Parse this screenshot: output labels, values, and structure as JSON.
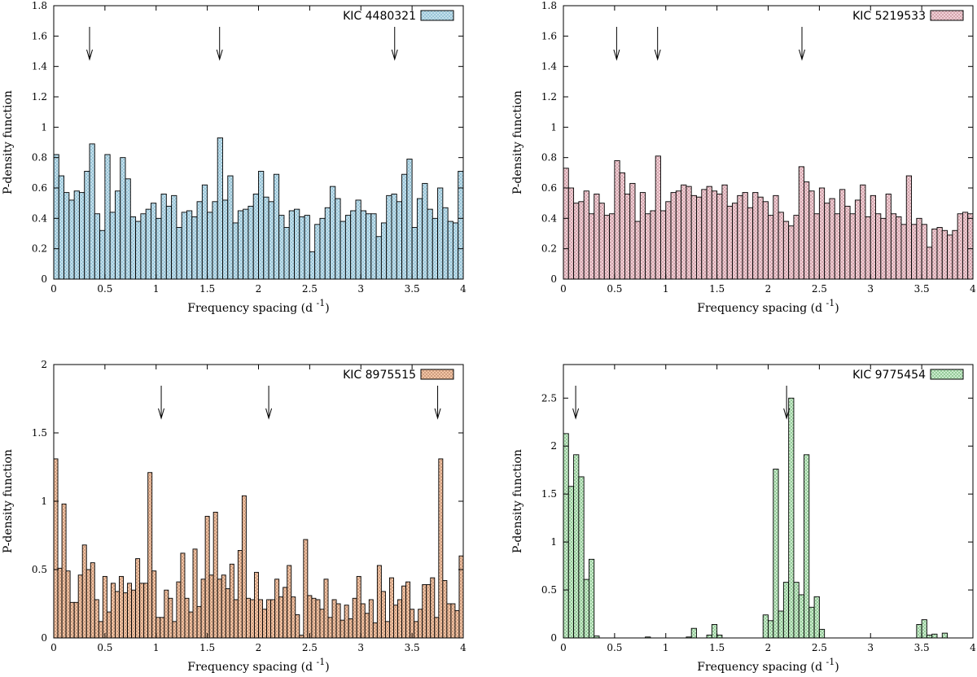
{
  "figure": {
    "caption": ""
  },
  "chart_data": [
    {
      "type": "bar",
      "name": "KIC 4480321",
      "legend": "KIC 4480321",
      "legend_position": "top-right",
      "color": "#c9e3ee",
      "pattern_color": "#7fb5cc",
      "xlabel": "Frequency spacing (d",
      "xlabel_sup": "-1",
      "xlabel_tail": ")",
      "ylabel": "P-density function",
      "xlim": [
        0,
        4
      ],
      "ylim": [
        0,
        1.8
      ],
      "xticks": [
        0,
        0.5,
        1,
        1.5,
        2,
        2.5,
        3,
        3.5,
        4
      ],
      "xtick_labels": [
        "0",
        "0.5",
        "1",
        "1.5",
        "2",
        "2.5",
        "3",
        "3.5",
        "4"
      ],
      "yticks": [
        0,
        0.2,
        0.4,
        0.6,
        0.8,
        1,
        1.2,
        1.4,
        1.6,
        1.8
      ],
      "ytick_labels": [
        "0",
        "0.2",
        "0.4",
        "0.6",
        "0.8",
        "1",
        "1.2",
        "1.4",
        "1.6",
        "1.8"
      ],
      "bin_width": 0.05,
      "arrows": [
        0.35,
        1.62,
        3.33
      ],
      "values": [
        0.82,
        0.68,
        0.57,
        0.52,
        0.58,
        0.57,
        0.71,
        0.89,
        0.43,
        0.32,
        0.82,
        0.44,
        0.58,
        0.8,
        0.66,
        0.41,
        0.38,
        0.43,
        0.46,
        0.5,
        0.4,
        0.56,
        0.48,
        0.55,
        0.34,
        0.44,
        0.45,
        0.41,
        0.51,
        0.62,
        0.44,
        0.51,
        0.93,
        0.52,
        0.68,
        0.37,
        0.45,
        0.46,
        0.48,
        0.56,
        0.71,
        0.54,
        0.51,
        0.69,
        0.42,
        0.34,
        0.45,
        0.46,
        0.41,
        0.42,
        0.18,
        0.36,
        0.4,
        0.47,
        0.61,
        0.53,
        0.38,
        0.42,
        0.45,
        0.52,
        0.45,
        0.43,
        0.43,
        0.28,
        0.37,
        0.55,
        0.56,
        0.51,
        0.69,
        0.79,
        0.34,
        0.53,
        0.63,
        0.46,
        0.4,
        0.6,
        0.47,
        0.38,
        0.37,
        0.71,
        0.52,
        0.37,
        0.64
      ]
    },
    {
      "type": "bar",
      "name": "KIC 5219533",
      "legend": "KIC 5219533",
      "legend_position": "top-right",
      "color": "#f3d6db",
      "pattern_color": "#c48a95",
      "xlabel": "Frequency spacing (d",
      "xlabel_sup": "-1",
      "xlabel_tail": ")",
      "ylabel": "P-density function",
      "xlim": [
        0,
        4
      ],
      "ylim": [
        0,
        1.8
      ],
      "xticks": [
        0,
        0.5,
        1,
        1.5,
        2,
        2.5,
        3,
        3.5,
        4
      ],
      "xtick_labels": [
        "0",
        "0.5",
        "1",
        "1.5",
        "2",
        "2.5",
        "3",
        "3.5",
        "4"
      ],
      "yticks": [
        0,
        0.2,
        0.4,
        0.6,
        0.8,
        1,
        1.2,
        1.4,
        1.6,
        1.8
      ],
      "ytick_labels": [
        "0",
        "0.2",
        "0.4",
        "0.6",
        "0.8",
        "1",
        "1.2",
        "1.4",
        "1.6",
        "1.8"
      ],
      "bin_width": 0.05,
      "arrows": [
        0.52,
        0.92,
        2.33
      ],
      "values": [
        0.73,
        0.6,
        0.5,
        0.51,
        0.58,
        0.43,
        0.56,
        0.5,
        0.42,
        0.43,
        0.78,
        0.7,
        0.56,
        0.63,
        0.38,
        0.57,
        0.43,
        0.45,
        0.81,
        0.45,
        0.51,
        0.57,
        0.58,
        0.62,
        0.61,
        0.55,
        0.54,
        0.59,
        0.61,
        0.58,
        0.56,
        0.62,
        0.48,
        0.5,
        0.55,
        0.57,
        0.47,
        0.57,
        0.54,
        0.51,
        0.42,
        0.55,
        0.44,
        0.38,
        0.35,
        0.42,
        0.74,
        0.64,
        0.58,
        0.43,
        0.6,
        0.5,
        0.53,
        0.43,
        0.59,
        0.48,
        0.43,
        0.52,
        0.62,
        0.41,
        0.55,
        0.43,
        0.4,
        0.56,
        0.43,
        0.41,
        0.36,
        0.68,
        0.36,
        0.4,
        0.36,
        0.21,
        0.33,
        0.34,
        0.32,
        0.29,
        0.32,
        0.43,
        0.44,
        0.43,
        0.38,
        0.39,
        0.47,
        0.38,
        0.42,
        0.38,
        0.36
      ]
    },
    {
      "type": "bar",
      "name": "KIC 8975515",
      "legend": "KIC 8975515",
      "legend_position": "top-right",
      "color": "#f7c9a9",
      "pattern_color": "#b7866a",
      "xlabel": "Frequency spacing (d",
      "xlabel_sup": "-1",
      "xlabel_tail": ")",
      "ylabel": "P-density function",
      "xlim": [
        0,
        4
      ],
      "ylim": [
        0,
        2
      ],
      "xticks": [
        0,
        0.5,
        1,
        1.5,
        2,
        2.5,
        3,
        3.5,
        4
      ],
      "xtick_labels": [
        "0",
        "0.5",
        "1",
        "1.5",
        "2",
        "2.5",
        "3",
        "3.5",
        "4"
      ],
      "yticks": [
        0,
        0.5,
        1,
        1.5,
        2
      ],
      "ytick_labels": [
        "0",
        "0.5",
        "1",
        "1.5",
        "2"
      ],
      "bin_width": 0.04,
      "arrows": [
        1.05,
        2.1,
        3.75
      ],
      "values": [
        1.31,
        0.51,
        0.98,
        0.49,
        0.26,
        0.26,
        0.46,
        0.68,
        0.5,
        0.55,
        0.28,
        0.12,
        0.45,
        0.19,
        0.4,
        0.34,
        0.45,
        0.33,
        0.4,
        0.35,
        0.58,
        0.4,
        0.4,
        1.21,
        0.49,
        0.15,
        0.15,
        0.35,
        0.29,
        0.12,
        0.41,
        0.62,
        0.29,
        0.19,
        0.65,
        0.23,
        0.43,
        0.89,
        0.46,
        0.92,
        0.43,
        0.46,
        0.36,
        0.54,
        0.28,
        0.64,
        1.04,
        0.29,
        0.28,
        0.48,
        0.28,
        0.21,
        0.28,
        0.28,
        0.43,
        0.3,
        0.37,
        0.53,
        0.3,
        0.17,
        0.02,
        0.72,
        0.31,
        0.29,
        0.28,
        0.21,
        0.43,
        0.15,
        0.28,
        0.25,
        0.13,
        0.24,
        0.14,
        0.29,
        0.45,
        0.25,
        0.18,
        0.28,
        0.11,
        0.53,
        0.34,
        0.12,
        0.44,
        0.24,
        0.28,
        0.38,
        0.41,
        0.21,
        0.12,
        0.21,
        0.39,
        0.39,
        0.44,
        0.15,
        1.31,
        0.42,
        0.25,
        0.25,
        0.2,
        0.6,
        0.58,
        0.24
      ]
    },
    {
      "type": "bar",
      "name": "KIC 9775454",
      "legend": "KIC 9775454",
      "legend_position": "top-right",
      "color": "#d2f0d4",
      "pattern_color": "#74b57a",
      "xlabel": "Frequency spacing (d",
      "xlabel_sup": "-1",
      "xlabel_tail": ")",
      "ylabel": "P-density function",
      "xlim": [
        0,
        4
      ],
      "ylim": [
        0,
        2.85
      ],
      "xticks": [
        0,
        0.5,
        1,
        1.5,
        2,
        2.5,
        3,
        3.5,
        4
      ],
      "xtick_labels": [
        "0",
        "0.5",
        "1",
        "1.5",
        "2",
        "2.5",
        "3",
        "3.5",
        "4"
      ],
      "yticks": [
        0,
        0.5,
        1,
        1.5,
        2,
        2.5
      ],
      "ytick_labels": [
        "0",
        "0.5",
        "1",
        "1.5",
        "2",
        "2.5"
      ],
      "bin_width": 0.05,
      "arrows": [
        0.12,
        2.18
      ],
      "values": [
        2.13,
        1.58,
        1.91,
        1.68,
        0.61,
        0.82,
        0.02,
        0,
        0,
        0,
        0,
        0,
        0,
        0,
        0,
        0,
        0.01,
        0,
        0,
        0,
        0,
        0,
        0,
        0,
        0.01,
        0.1,
        0,
        0,
        0.03,
        0.14,
        0.03,
        0,
        0,
        0,
        0,
        0,
        0,
        0,
        0,
        0.24,
        0.18,
        1.76,
        0.28,
        0.58,
        2.5,
        0.58,
        0.45,
        1.91,
        0.32,
        0.43,
        0.09,
        0,
        0,
        0,
        0,
        0,
        0,
        0,
        0,
        0,
        0,
        0,
        0,
        0,
        0,
        0,
        0,
        0,
        0,
        0.14,
        0.19,
        0.03,
        0.04,
        0,
        0.05,
        0,
        0,
        0,
        0,
        0
      ]
    }
  ]
}
